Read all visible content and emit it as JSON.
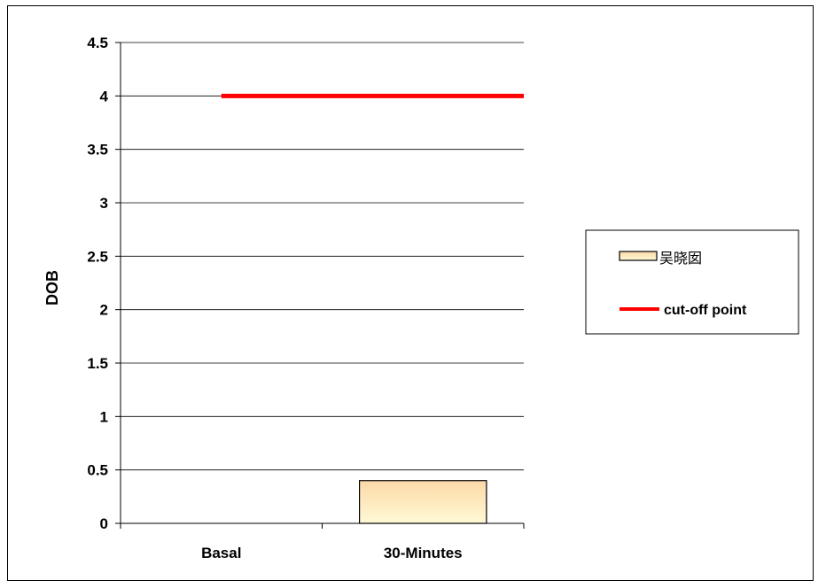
{
  "chart_data": {
    "type": "bar",
    "title": "",
    "xlabel": "",
    "ylabel": "DOB",
    "ylim": [
      0,
      4.5
    ],
    "yticks": [
      "0",
      "0.5",
      "1",
      "1.5",
      "2",
      "2.5",
      "3",
      "3.5",
      "4",
      "4.5"
    ],
    "categories": [
      "Basal",
      "30-Minutes"
    ],
    "series": [
      {
        "name": "吴晓囡",
        "type": "bar",
        "values": [
          null,
          0.4
        ],
        "color": "#fde3b6"
      },
      {
        "name": "cut-off point",
        "type": "line",
        "value": 4,
        "color": "#ff0000"
      }
    ],
    "grid": true,
    "legend_position": "right"
  }
}
